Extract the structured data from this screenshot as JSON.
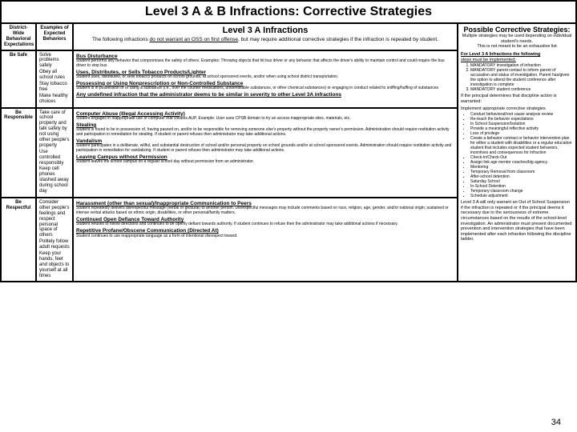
{
  "title": "Level 3 A & B Infractions: Corrective Strategies",
  "pageNumber": "34",
  "header": {
    "c1": "District-Wide Behavioral Expectations",
    "c2": "Examples of Expected Behaviors",
    "midTitle": "Level 3 A Infractions",
    "midSub": "The following infractions do not warrant an OSS on first offense, but may require additional corrective strategies if the infraction is repeated by student.",
    "possTitle": "Possible Corrective Strategies:",
    "possSub1": "Multiple strategies may be used depending on individual student's needs.",
    "possSub2": "This is not meant to be an exhaustive list"
  },
  "rows": [
    {
      "label": "Be Safe",
      "behaviors": [
        "Solve problems safely",
        "Obey all school rules",
        "Stay tobacco free",
        "Make healthy choices"
      ],
      "infractions": [
        {
          "h": "Bus Disturbance",
          "t": "Student performs any behavior that compromises the safety of others. Examples: Throwing objects that hit bus driver or any behavior that affects the driver's ability to maintain control and could require the bus driver to stop bus"
        },
        {
          "h": "Uses, Distributes, or Sells Tobacco Products/Lighter",
          "t": "Student uses, distributes, or sells tobacco products on school grounds, at school sponsored events, and/or when using school district transportation."
        },
        {
          "h": "Possessing or Using Nonprescription or Non-Controlled Substance",
          "t": "Student is in possession of or using a substance (i.e., over the counter medications, unidentifiable substances, or other chemical substances) or engaging in conduct related to sniffing/huffing of substances"
        },
        {
          "h": "Any undefined infraction that the administrator deems to be similar in severity to other Level 3A infractions",
          "t": ""
        }
      ]
    },
    {
      "label": "Be Responsible",
      "behaviors": [
        "Take care of school property and talk safely by not using other people's property",
        "Use controlled responsibly",
        "Keep cell phones stashed away during school day"
      ],
      "infractions": [
        {
          "h": "Computer Abuse (Illegal Accessing Activity)",
          "t": "Student engages in inappropriate use of computer that violates AUP. Example: User uses CPSB domain to try an access inappropriate sites, materials, etc."
        },
        {
          "h": "Stealing",
          "t": "Student is found to be in possession of, having passed on, and/or to be responsible for removing someone else's property without the property owner's permission. Administration should require restitution activity and participation in remediation for stealing. If student or parent refuses then administrator may take additional actions."
        },
        {
          "h": "Vandalism",
          "t": "Student participates in a deliberate, willful, and substantial destruction of school and/or personal property on school grounds and/or at school sponsored events. Administration should require restitution activity and participation in remediation for vandalizing. If student or parent refuses then administrator may take additional actions."
        },
        {
          "h": "Leaving Campus without Permission",
          "t": "Student leaves the school campus on a regular school day without permission from an administrator."
        }
      ]
    },
    {
      "label": "Be Respectful",
      "behaviors": [
        "Consider other people's feelings and respect personal space of others",
        "Politely follow adult requests",
        "Keep your hands, feet and objects to yourself at all times"
      ],
      "infractions": [
        {
          "h": "Harassment (other than sexual)/Inappropriate Communication to Peers",
          "t": "Student repeatedly delivers disrespectful message (verbal or gestural) to another person. Disrespectful messages may include comments based on race, religion, age, gender, and/or national origin; sustained or intense verbal attacks based on ethnic origin, disabilities, or other personal/family matters."
        },
        {
          "h": "Continued Open Defiance Toward Authority",
          "t": "Student refuses to follow directions and continues to be openly defiant towards authority. If student continues to refuse then the administrator may take additional actions if necessary."
        },
        {
          "h": "Repetitive Profane/Obscene Communication (Directed At)",
          "t": "Student continues to use inappropriate language as a form of intentional disrespect toward."
        }
      ]
    }
  ],
  "corrective": {
    "introTitle": "For Level 3 A Infractions the following",
    "introSub": "steps must be implemented:",
    "mandatory": [
      "MANDATORY investigation of infraction",
      "MANDATORY parent contact to inform parent of accusation and status of investigation. Parent has/given the option to attend the student conference after investigation is complete",
      "MANDATORY student conference"
    ],
    "ifPrincipal": "If the principal determines that discipline action is warranted:",
    "implement": "Implement appropriate corrective strategies",
    "bullets": [
      "Conduct behavioral/root cause analysis review",
      "Re-teach the behavior expectations",
      "In School Suspension/Isolation",
      "Provide a meaningful reflective activity",
      "Loss of privilege",
      "Create a behavior contract or behavior intervention plan for either a student with disabilities or a regular education student that includes expected student behaviors, incentives and consequences for infraction",
      "Check-In/Check-Out",
      "Assign link age mentor coaches/big agency",
      "Mentoring",
      "Temporary Removal from classroom",
      "After-school detention",
      "Saturday School",
      "In-School Detention",
      "Temporary classroom change",
      "Schedule adjustment"
    ],
    "footer": "Level 3 A will only warrant an Out of School Suspension if the infraction is repeated or if the principal deems it necessary due to the seriousness of extreme circumstances based on the results of the school-level investigation. An administrator must present documented prevention and intervention strategies that have been implemented after each infraction following the discipline ladder."
  }
}
